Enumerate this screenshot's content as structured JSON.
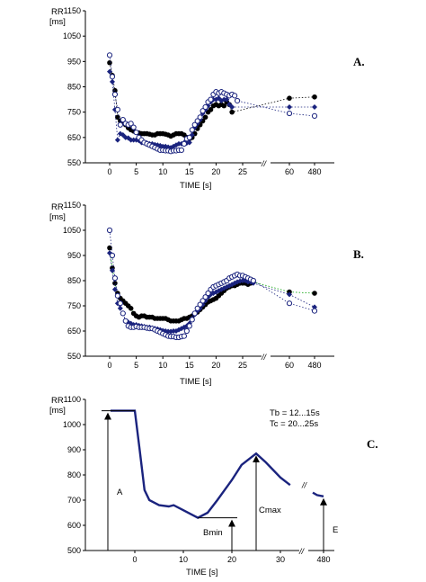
{
  "chart_data": [
    {
      "type": "scatter",
      "panel": "A.",
      "ylabel_1": "RR",
      "ylabel_2": "[ms]",
      "xlabel": "TIME [s]",
      "ylim": [
        550,
        1150
      ],
      "yticks": [
        550,
        650,
        750,
        850,
        950,
        1050,
        1150
      ],
      "xticks": [
        "0",
        "5",
        "10",
        "15",
        "20",
        "25",
        "60",
        "480"
      ],
      "break_mark": "//",
      "series": [
        {
          "marker": "filled-circle",
          "color": "#000000",
          "x": [
            0,
            0.5,
            1,
            1.5,
            2,
            2.5,
            3,
            3.5,
            4,
            4.5,
            5,
            5.5,
            6,
            6.5,
            7,
            7.5,
            8,
            8.5,
            9,
            9.5,
            10,
            10.5,
            11,
            11.5,
            12,
            12.5,
            13,
            13.5,
            14,
            14.5,
            15,
            15.5,
            16,
            16.5,
            17,
            17.5,
            18,
            18.5,
            19,
            19.5,
            20,
            20.5,
            21,
            21.5,
            22,
            22.5,
            23,
            60,
            480
          ],
          "y": [
            945,
            895,
            835,
            730,
            715,
            710,
            700,
            688,
            680,
            675,
            670,
            668,
            665,
            665,
            665,
            663,
            660,
            660,
            665,
            665,
            665,
            663,
            660,
            655,
            660,
            665,
            665,
            665,
            660,
            650,
            645,
            650,
            665,
            685,
            700,
            715,
            730,
            750,
            760,
            775,
            780,
            775,
            780,
            775,
            790,
            780,
            750,
            805,
            810
          ]
        },
        {
          "marker": "filled-diamond",
          "color": "#1a237e",
          "x": [
            0,
            0.5,
            1,
            1.5,
            2,
            2.5,
            3,
            3.5,
            4,
            4.5,
            5,
            5.5,
            6,
            6.5,
            7,
            7.5,
            8,
            8.5,
            9,
            9.5,
            10,
            10.5,
            11,
            11.5,
            12,
            12.5,
            13,
            13.5,
            14,
            14.5,
            15,
            15.5,
            16,
            16.5,
            17,
            17.5,
            18,
            18.5,
            19,
            19.5,
            20,
            20.5,
            21,
            21.5,
            22,
            22.5,
            23,
            60,
            480
          ],
          "y": [
            910,
            870,
            760,
            640,
            665,
            660,
            650,
            648,
            640,
            640,
            640,
            638,
            630,
            630,
            628,
            625,
            625,
            622,
            620,
            618,
            615,
            615,
            612,
            610,
            615,
            620,
            625,
            625,
            630,
            628,
            630,
            660,
            690,
            705,
            720,
            745,
            760,
            775,
            790,
            800,
            800,
            805,
            795,
            800,
            800,
            780,
            770,
            770,
            770
          ]
        },
        {
          "marker": "open-circle",
          "color": "#1a237e",
          "x": [
            0,
            0.5,
            1,
            1.5,
            2,
            2.5,
            3,
            3.5,
            4,
            4.5,
            5,
            5.5,
            6,
            6.5,
            7,
            7.5,
            8,
            8.5,
            9,
            9.5,
            10,
            10.5,
            11,
            11.5,
            12,
            12.5,
            13,
            13.5,
            14,
            14.5,
            15,
            15.5,
            16,
            16.5,
            17,
            17.5,
            18,
            18.5,
            19,
            19.5,
            20,
            20.5,
            21,
            21.5,
            22,
            22.5,
            23,
            23.5,
            24,
            60,
            480
          ],
          "y": [
            975,
            890,
            820,
            760,
            700,
            720,
            705,
            700,
            705,
            690,
            670,
            650,
            640,
            630,
            625,
            620,
            615,
            610,
            605,
            600,
            600,
            598,
            598,
            595,
            598,
            598,
            600,
            600,
            625,
            645,
            650,
            680,
            700,
            715,
            730,
            755,
            770,
            790,
            800,
            820,
            830,
            825,
            830,
            825,
            820,
            815,
            820,
            815,
            795,
            745,
            735
          ]
        }
      ]
    },
    {
      "type": "scatter",
      "panel": "B.",
      "ylabel_1": "RR",
      "ylabel_2": "[ms]",
      "xlabel": "TIME [s]",
      "ylim": [
        550,
        1150
      ],
      "yticks": [
        550,
        650,
        750,
        850,
        950,
        1050,
        1150
      ],
      "xticks": [
        "0",
        "5",
        "10",
        "15",
        "20",
        "25",
        "60",
        "480"
      ],
      "break_mark": "//",
      "series": [
        {
          "marker": "filled-circle",
          "color": "#000000",
          "x": [
            0,
            0.5,
            1,
            1.5,
            2,
            2.5,
            3,
            3.5,
            4,
            4.5,
            5,
            5.5,
            6,
            6.5,
            7,
            7.5,
            8,
            8.5,
            9,
            9.5,
            10,
            10.5,
            11,
            11.5,
            12,
            12.5,
            13,
            13.5,
            14,
            14.5,
            15,
            15.5,
            16,
            16.5,
            17,
            17.5,
            18,
            18.5,
            19,
            19.5,
            20,
            20.5,
            21,
            21.5,
            22,
            22.5,
            23,
            23.5,
            24,
            24.5,
            25,
            25.5,
            26,
            26.5,
            27,
            60,
            480
          ],
          "y": [
            980,
            900,
            840,
            800,
            780,
            770,
            760,
            750,
            740,
            720,
            710,
            705,
            710,
            710,
            705,
            705,
            705,
            700,
            700,
            700,
            700,
            700,
            695,
            690,
            690,
            690,
            690,
            695,
            700,
            700,
            705,
            710,
            720,
            725,
            735,
            745,
            755,
            765,
            770,
            775,
            780,
            790,
            800,
            810,
            820,
            825,
            830,
            830,
            835,
            840,
            840,
            840,
            835,
            840,
            845,
            805,
            800
          ]
        },
        {
          "marker": "filled-diamond",
          "color": "#1a237e",
          "x": [
            0,
            0.5,
            1,
            1.5,
            2,
            2.5,
            3,
            3.5,
            4,
            4.5,
            5,
            5.5,
            6,
            6.5,
            7,
            7.5,
            8,
            8.5,
            9,
            9.5,
            10,
            10.5,
            11,
            11.5,
            12,
            12.5,
            13,
            13.5,
            14,
            14.5,
            15,
            15.5,
            16,
            16.5,
            17,
            17.5,
            18,
            18.5,
            19,
            19.5,
            20,
            20.5,
            21,
            21.5,
            22,
            22.5,
            23,
            23.5,
            24,
            24.5,
            25,
            25.5,
            26,
            26.5,
            27,
            60,
            480
          ],
          "y": [
            960,
            890,
            815,
            760,
            740,
            720,
            690,
            685,
            680,
            675,
            675,
            672,
            670,
            668,
            665,
            665,
            662,
            660,
            658,
            655,
            652,
            650,
            648,
            648,
            650,
            650,
            655,
            660,
            665,
            670,
            680,
            700,
            715,
            730,
            740,
            755,
            770,
            785,
            795,
            800,
            805,
            810,
            815,
            820,
            825,
            830,
            835,
            840,
            845,
            848,
            850,
            850,
            845,
            845,
            840,
            795,
            745
          ]
        },
        {
          "marker": "open-circle",
          "color": "#1a237e",
          "x": [
            0,
            0.5,
            1,
            1.5,
            2,
            2.5,
            3,
            3.5,
            4,
            4.5,
            5,
            5.5,
            6,
            6.5,
            7,
            7.5,
            8,
            8.5,
            9,
            9.5,
            10,
            10.5,
            11,
            11.5,
            12,
            12.5,
            13,
            13.5,
            14,
            14.5,
            15,
            15.5,
            16,
            16.5,
            17,
            17.5,
            18,
            18.5,
            19,
            19.5,
            20,
            20.5,
            21,
            21.5,
            22,
            22.5,
            23,
            23.5,
            24,
            24.5,
            25,
            25.5,
            26,
            26.5,
            27,
            60,
            480
          ],
          "y": [
            1050,
            950,
            860,
            790,
            760,
            720,
            690,
            670,
            665,
            665,
            668,
            665,
            665,
            665,
            662,
            660,
            660,
            655,
            650,
            645,
            640,
            635,
            630,
            628,
            628,
            625,
            625,
            628,
            630,
            650,
            670,
            695,
            720,
            740,
            755,
            770,
            785,
            800,
            815,
            825,
            830,
            835,
            840,
            845,
            850,
            860,
            865,
            870,
            875,
            870,
            870,
            865,
            860,
            855,
            850,
            760,
            730
          ]
        }
      ],
      "trend_line_color": "#00a000"
    },
    {
      "type": "line",
      "panel": "C.",
      "ylabel_1": "RR",
      "ylabel_2": "[ms]",
      "xlabel": "TIME [s]",
      "ylim": [
        500,
        1100
      ],
      "yticks": [
        500,
        600,
        700,
        800,
        900,
        1000,
        1100
      ],
      "xticks": [
        "0",
        "10",
        "20",
        "30",
        "480"
      ],
      "break_mark": "//",
      "x": [
        -5,
        0,
        1,
        2,
        3,
        5,
        7,
        8,
        10,
        12,
        13,
        15,
        17,
        20,
        22,
        25,
        27,
        30,
        32,
        35,
        37,
        40
      ],
      "y": [
        1055,
        1055,
        900,
        740,
        700,
        680,
        675,
        680,
        660,
        640,
        630,
        650,
        700,
        780,
        840,
        885,
        850,
        790,
        760,
        730,
        720,
        715
      ],
      "annotations": {
        "tb": "Tb = 12...15s",
        "tc": "Tc = 20...25s",
        "a": "A",
        "bmin": "Bmin",
        "cmax": "Cmax",
        "e": "E"
      },
      "color": "#1a237e"
    }
  ]
}
